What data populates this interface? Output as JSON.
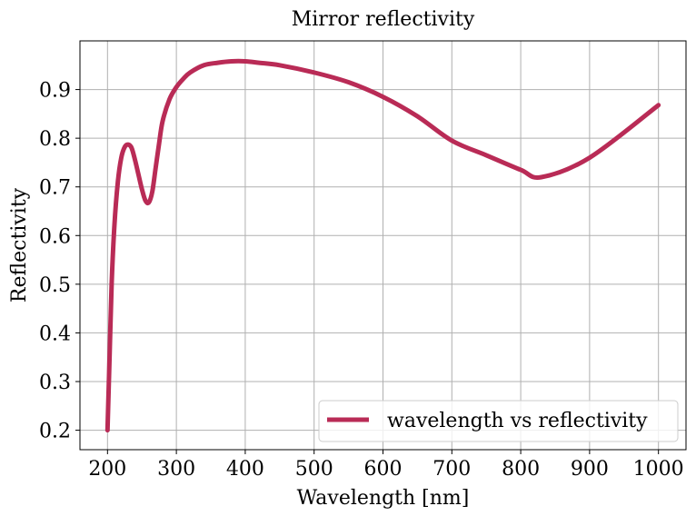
{
  "chart_data": {
    "type": "line",
    "title": "Mirror reflectivity",
    "xlabel": "Wavelength [nm]",
    "ylabel": "Reflectivity",
    "xlim": [
      160,
      1040
    ],
    "ylim": [
      0.16,
      1.0
    ],
    "xticks": [
      200,
      300,
      400,
      500,
      600,
      700,
      800,
      900,
      1000
    ],
    "yticks": [
      0.2,
      0.3,
      0.4,
      0.5,
      0.6,
      0.7,
      0.8,
      0.9
    ],
    "grid": true,
    "legend_position": "lower-right",
    "series": [
      {
        "name": "wavelength vs reflectivity",
        "color": "#b92b56",
        "x": [
          200,
          203,
          206,
          210,
          215,
          220,
          225,
          230,
          235,
          240,
          245,
          250,
          255,
          260,
          265,
          270,
          275,
          280,
          290,
          300,
          310,
          320,
          340,
          360,
          380,
          400,
          420,
          450,
          500,
          550,
          600,
          650,
          700,
          750,
          800,
          830,
          900,
          1000
        ],
        "y": [
          0.2,
          0.35,
          0.5,
          0.62,
          0.71,
          0.76,
          0.782,
          0.787,
          0.78,
          0.755,
          0.725,
          0.695,
          0.672,
          0.668,
          0.69,
          0.74,
          0.79,
          0.835,
          0.88,
          0.905,
          0.922,
          0.935,
          0.95,
          0.955,
          0.958,
          0.958,
          0.955,
          0.95,
          0.935,
          0.915,
          0.885,
          0.845,
          0.795,
          0.765,
          0.735,
          0.72,
          0.76,
          0.868
        ]
      }
    ]
  }
}
